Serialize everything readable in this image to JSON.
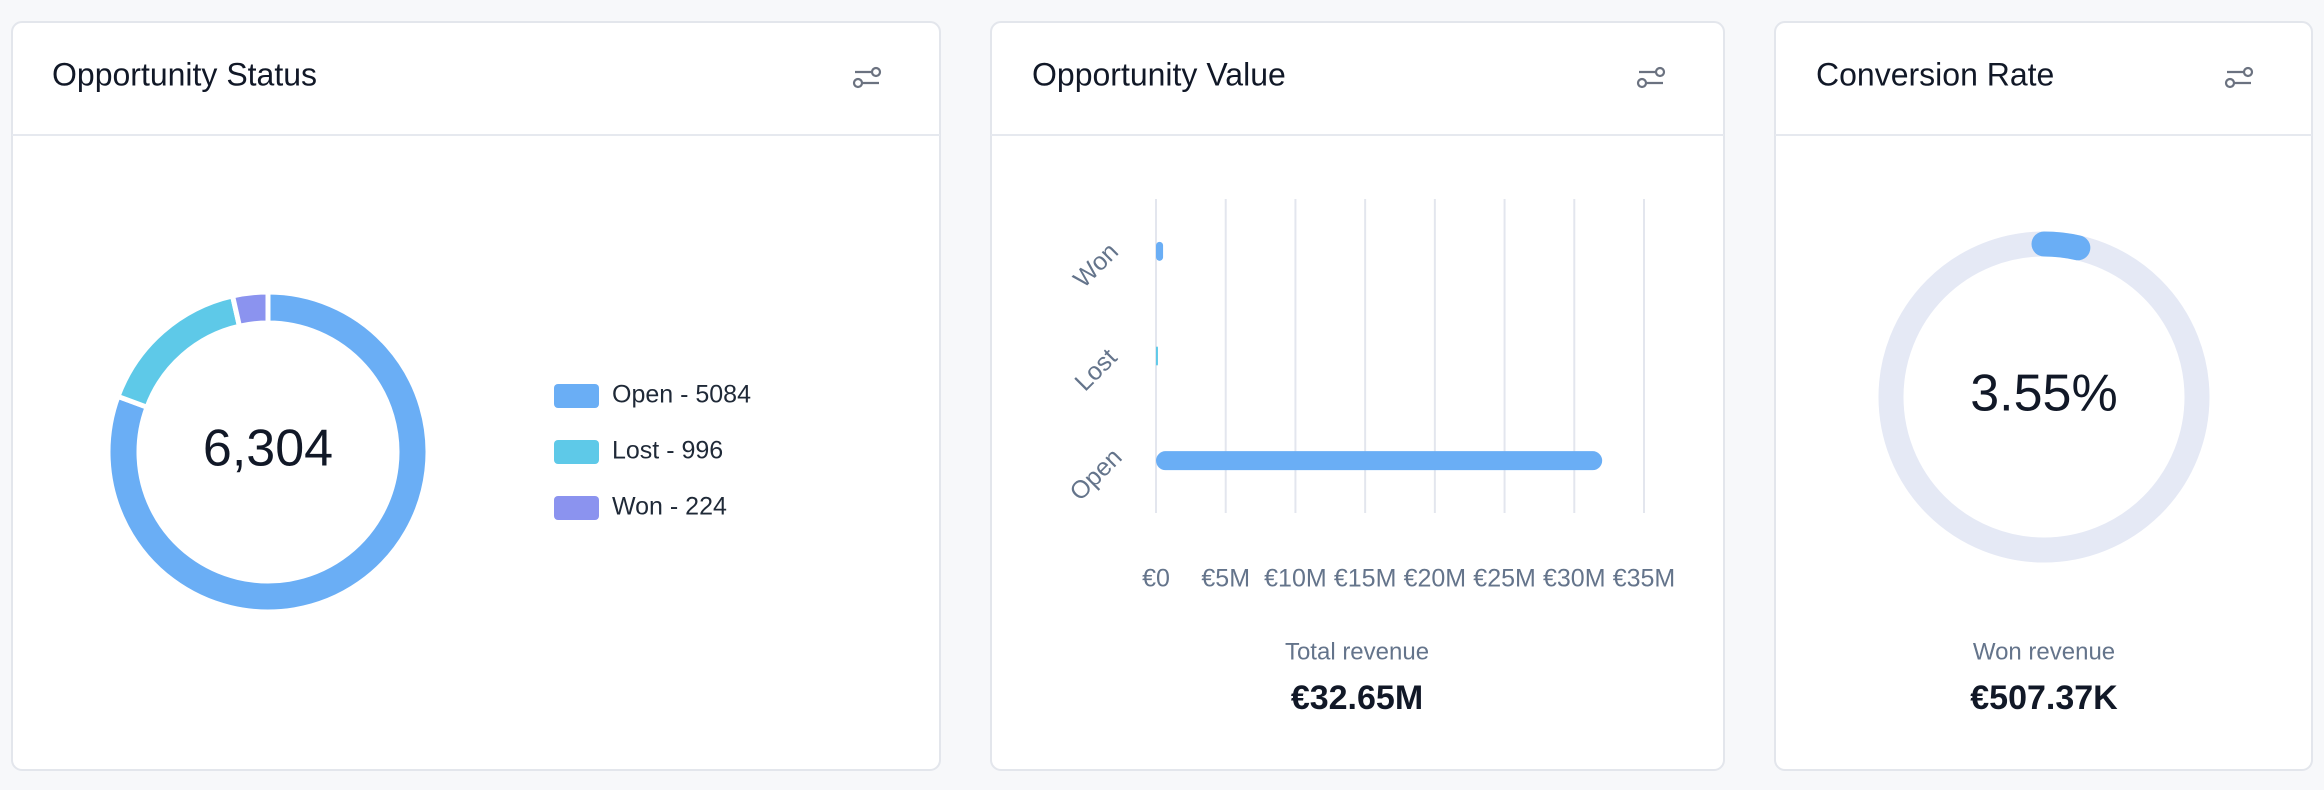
{
  "chart_data": [
    {
      "type": "pie",
      "title": "Opportunity Status",
      "categories": [
        "Open",
        "Lost",
        "Won"
      ],
      "values": [
        5084,
        996,
        224
      ],
      "colors": [
        "#6aaef5",
        "#5ec9e8",
        "#8b93ef"
      ],
      "legend_labels": [
        "Open - 5084",
        "Lost - 996",
        "Won - 224"
      ],
      "center_label": "6,304"
    },
    {
      "type": "bar",
      "title": "Opportunity Value",
      "orientation": "horizontal",
      "categories": [
        "Won",
        "Lost",
        "Open"
      ],
      "values": [
        507370,
        140000,
        32000000
      ],
      "colors": [
        "#6aaef5",
        "#5ec9e8",
        "#6aaef5"
      ],
      "xlim": [
        0,
        35000000
      ],
      "xticks": [
        {
          "value": 0,
          "label": "€0"
        },
        {
          "value": 5000000,
          "label": "€5M"
        },
        {
          "value": 10000000,
          "label": "€10M"
        },
        {
          "value": 15000000,
          "label": "€15M"
        },
        {
          "value": 20000000,
          "label": "€20M"
        },
        {
          "value": 25000000,
          "label": "€25M"
        },
        {
          "value": 30000000,
          "label": "€30M"
        },
        {
          "value": 35000000,
          "label": "€35M"
        }
      ],
      "grid": true,
      "annotations": [
        "Total revenue",
        "€32.65M"
      ]
    },
    {
      "type": "gauge",
      "title": "Conversion Rate",
      "value": 3.55,
      "value_label": "3.55%",
      "range": [
        0,
        100
      ],
      "color": "#6aaef5",
      "track_color": "#e5e9f5",
      "annotations": [
        "Won revenue",
        "€507.37K"
      ]
    }
  ]
}
